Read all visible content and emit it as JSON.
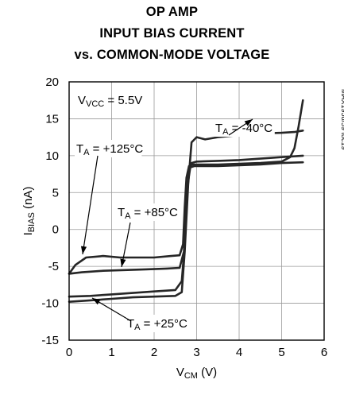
{
  "title_lines": [
    "OP AMP",
    "INPUT BIAS CURRENT",
    "vs. COMMON-MODE VOLTAGE"
  ],
  "chart_data": {
    "type": "line",
    "title": "OP AMP INPUT BIAS CURRENT vs. COMMON-MODE VOLTAGE",
    "xlabel": {
      "main": "V",
      "sub": "CM",
      "tail": " (V)"
    },
    "ylabel": {
      "main": "I",
      "sub": "BIAS",
      "tail": " (nA)"
    },
    "xlim": [
      0,
      6
    ],
    "ylim": [
      -15,
      20
    ],
    "xticks": [
      0,
      1,
      2,
      3,
      4,
      5,
      6
    ],
    "yticks": [
      -15,
      -10,
      -5,
      0,
      5,
      10,
      15,
      20
    ],
    "grid": true,
    "condition": {
      "main": "V",
      "sub": "VCC",
      "tail": " = 5.5V"
    },
    "figure_code": "MAX1958/59 toc19",
    "series": [
      {
        "name": "TA = -40°C",
        "label": {
          "main": "T",
          "sub": "A",
          "tail": " = -40°C"
        },
        "x": [
          0,
          0.5,
          1,
          1.5,
          2,
          2.5,
          2.65,
          2.72,
          2.8,
          2.88,
          3.0,
          3.2,
          3.5,
          4.0,
          4.5,
          5.0,
          5.3,
          5.4,
          5.5
        ],
        "y": [
          -9.8,
          -9.6,
          -9.4,
          -9.2,
          -9.1,
          -9.0,
          -8.5,
          -3,
          6,
          11.8,
          12.5,
          12.2,
          12.5,
          12.8,
          13.0,
          13.1,
          13.2,
          13.3,
          13.4
        ]
      },
      {
        "name": "TA = +125°C",
        "label": {
          "main": "T",
          "sub": "A",
          "tail": " = +125°C"
        },
        "x": [
          0,
          0.15,
          0.4,
          0.8,
          1.2,
          1.6,
          2.0,
          2.4,
          2.6,
          2.68,
          2.72,
          2.76,
          2.82,
          2.9,
          3.0,
          3.5,
          4.0,
          4.5,
          5.0,
          5.2,
          5.3,
          5.4,
          5.5
        ],
        "y": [
          -6,
          -4.8,
          -3.8,
          -3.6,
          -3.8,
          -3.8,
          -3.8,
          -3.6,
          -3.5,
          -2,
          3,
          7,
          8.6,
          8.8,
          8.8,
          8.8,
          8.9,
          9.0,
          9.2,
          9.8,
          11,
          14,
          17.5
        ]
      },
      {
        "name": "TA = +85°C",
        "label": {
          "main": "T",
          "sub": "A",
          "tail": " = +85°C"
        },
        "x": [
          0,
          0.3,
          0.8,
          1.3,
          1.8,
          2.3,
          2.6,
          2.7,
          2.75,
          2.8,
          2.85,
          2.95,
          3.5,
          4.0,
          4.5,
          5.0,
          5.5
        ],
        "y": [
          -6.0,
          -5.8,
          -5.6,
          -5.5,
          -5.4,
          -5.3,
          -5.2,
          -3,
          2,
          6.5,
          8.4,
          8.6,
          8.6,
          8.7,
          8.8,
          9.0,
          9.1
        ]
      },
      {
        "name": "TA = +25°C",
        "label": {
          "main": "T",
          "sub": "A",
          "tail": " = +25°C"
        },
        "x": [
          0,
          0.5,
          1,
          1.5,
          2,
          2.5,
          2.65,
          2.72,
          2.78,
          2.83,
          2.88,
          3.0,
          3.5,
          4.0,
          4.5,
          5.0,
          5.5
        ],
        "y": [
          -9.1,
          -9.0,
          -8.8,
          -8.6,
          -8.4,
          -8.2,
          -7,
          -2,
          5,
          8.5,
          9.0,
          9.2,
          9.3,
          9.4,
          9.6,
          9.8,
          10.0
        ]
      }
    ]
  }
}
